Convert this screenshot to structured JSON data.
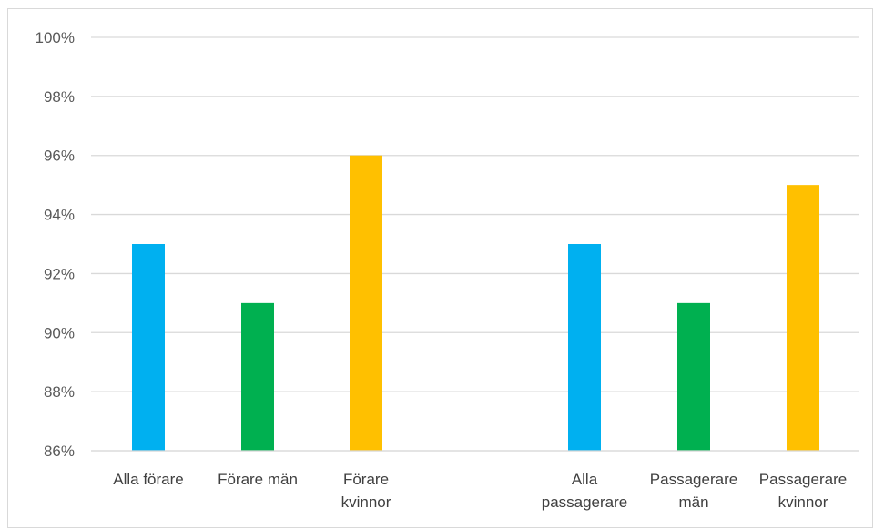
{
  "chart_data": {
    "type": "bar",
    "title": "",
    "xlabel": "",
    "ylabel": "",
    "ylim": [
      0.86,
      1.0
    ],
    "yticks": [
      0.86,
      0.88,
      0.9,
      0.92,
      0.94,
      0.96,
      0.98,
      1.0
    ],
    "ytick_labels": [
      "86%",
      "88%",
      "90%",
      "92%",
      "94%",
      "96%",
      "98%",
      "100%"
    ],
    "grid": true,
    "legend": "none",
    "bars": [
      {
        "category": [
          "Alla förare"
        ],
        "value": 0.93,
        "color": "#00b0f0"
      },
      {
        "category": [
          "Förare män"
        ],
        "value": 0.91,
        "color": "#00b050"
      },
      {
        "category": [
          "Förare",
          "kvinnor"
        ],
        "value": 0.96,
        "color": "#ffc000"
      },
      {
        "category": [
          "Alla",
          "passagerare"
        ],
        "value": 0.93,
        "color": "#00b0f0"
      },
      {
        "category": [
          "Passagerare",
          "män"
        ],
        "value": 0.91,
        "color": "#00b050"
      },
      {
        "category": [
          "Passagerare",
          "kvinnor"
        ],
        "value": 0.95,
        "color": "#ffc000"
      }
    ]
  }
}
